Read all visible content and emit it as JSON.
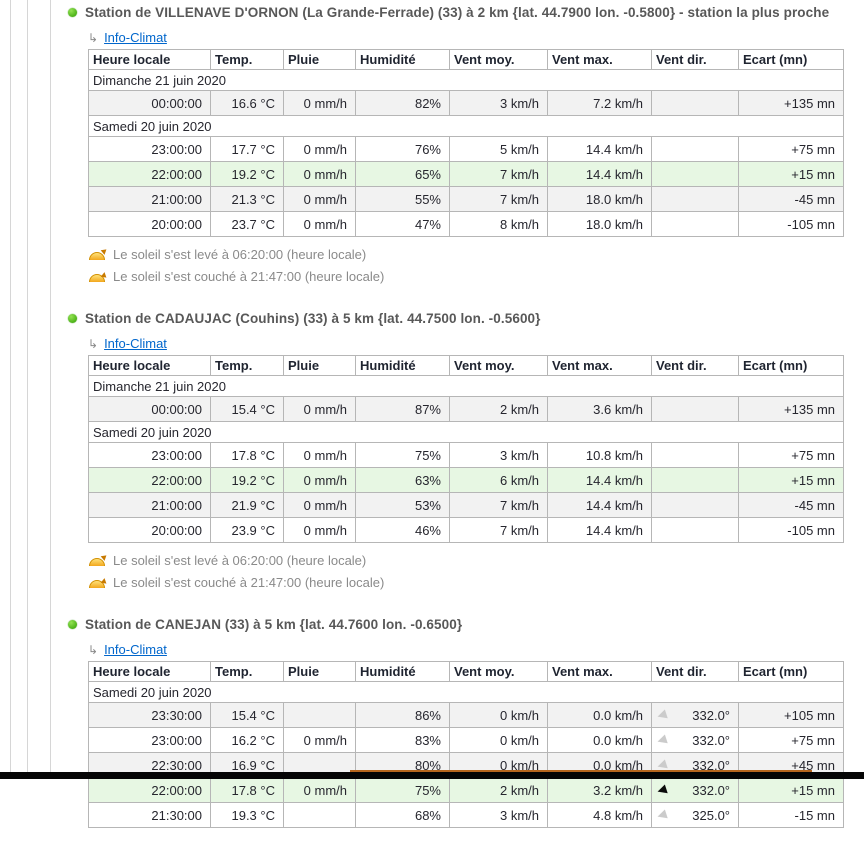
{
  "colors": {
    "station_dot": "#3fae00",
    "row_highlight_green": "#e7f7e3",
    "row_alt_gray": "#f2f2f2",
    "link_blue": "#0066cc",
    "bottom_bar_black": "#050505",
    "bottom_accent_orange": "#b5651d"
  },
  "icons": {
    "branch_arrow": "↳",
    "wind_arrow": "◀",
    "station_bullet": "green-dot",
    "sunrise": "sun-half-rise",
    "sunset": "sun-half-set"
  },
  "info_link_label": "Info-Climat",
  "columns": [
    "Heure locale",
    "Temp.",
    "Pluie",
    "Humidité",
    "Vent moy.",
    "Vent max.",
    "Vent dir.",
    "Ecart (mn)"
  ],
  "column_keys": [
    "heure-locale",
    "temp",
    "pluie",
    "humidite",
    "vent-moy",
    "vent-max",
    "vent-dir",
    "ecart"
  ],
  "stations": [
    {
      "title": "Station de VILLENAVE D'ORNON (La Grande-Ferrade) (33) à 2 km {lat. 44.7900 lon. -0.5800} - station la plus proche",
      "rows": [
        {
          "type": "date",
          "label": "Dimanche 21 juin 2020"
        },
        {
          "type": "data",
          "bg": "gray",
          "cells": [
            "00:00:00",
            "16.6 °C",
            "0 mm/h",
            "82%",
            "3 km/h",
            "7.2 km/h",
            "",
            "+135 mn"
          ]
        },
        {
          "type": "date",
          "label": "Samedi 20 juin 2020"
        },
        {
          "type": "data",
          "bg": "white",
          "cells": [
            "23:00:00",
            "17.7 °C",
            "0 mm/h",
            "76%",
            "5 km/h",
            "14.4 km/h",
            "",
            "+75 mn"
          ]
        },
        {
          "type": "data",
          "bg": "green",
          "cells": [
            "22:00:00",
            "19.2 °C",
            "0 mm/h",
            "65%",
            "7 km/h",
            "14.4 km/h",
            "",
            "+15 mn"
          ]
        },
        {
          "type": "data",
          "bg": "gray",
          "cells": [
            "21:00:00",
            "21.3 °C",
            "0 mm/h",
            "55%",
            "7 km/h",
            "18.0 km/h",
            "",
            "-45 mn"
          ]
        },
        {
          "type": "data",
          "bg": "white",
          "cells": [
            "20:00:00",
            "23.7 °C",
            "0 mm/h",
            "47%",
            "8 km/h",
            "18.0 km/h",
            "",
            "-105 mn"
          ]
        }
      ],
      "sunrise": "Le soleil s'est levé à 06:20:00 (heure locale)",
      "sunset": "Le soleil s'est couché à 21:47:00 (heure locale)"
    },
    {
      "title": "Station de CADAUJAC (Couhins) (33) à 5 km {lat. 44.7500 lon. -0.5600}",
      "rows": [
        {
          "type": "date",
          "label": "Dimanche 21 juin 2020"
        },
        {
          "type": "data",
          "bg": "gray",
          "cells": [
            "00:00:00",
            "15.4 °C",
            "0 mm/h",
            "87%",
            "2 km/h",
            "3.6 km/h",
            "",
            "+135 mn"
          ]
        },
        {
          "type": "date",
          "label": "Samedi 20 juin 2020"
        },
        {
          "type": "data",
          "bg": "white",
          "cells": [
            "23:00:00",
            "17.8 °C",
            "0 mm/h",
            "75%",
            "3 km/h",
            "10.8 km/h",
            "",
            "+75 mn"
          ]
        },
        {
          "type": "data",
          "bg": "green",
          "cells": [
            "22:00:00",
            "19.2 °C",
            "0 mm/h",
            "63%",
            "6 km/h",
            "14.4 km/h",
            "",
            "+15 mn"
          ]
        },
        {
          "type": "data",
          "bg": "gray",
          "cells": [
            "21:00:00",
            "21.9 °C",
            "0 mm/h",
            "53%",
            "7 km/h",
            "14.4 km/h",
            "",
            "-45 mn"
          ]
        },
        {
          "type": "data",
          "bg": "white",
          "cells": [
            "20:00:00",
            "23.9 °C",
            "0 mm/h",
            "46%",
            "7 km/h",
            "14.4 km/h",
            "",
            "-105 mn"
          ]
        }
      ],
      "sunrise": "Le soleil s'est levé à 06:20:00 (heure locale)",
      "sunset": "Le soleil s'est couché à 21:47:00 (heure locale)"
    },
    {
      "title": "Station de CANEJAN (33) à 5 km {lat. 44.7600 lon. -0.6500}",
      "rows": [
        {
          "type": "date",
          "label": "Samedi 20 juin 2020"
        },
        {
          "type": "data",
          "bg": "gray",
          "wind_arrow": "gray",
          "cells": [
            "23:30:00",
            "15.4 °C",
            "",
            "86%",
            "0 km/h",
            "0.0 km/h",
            "332.0°",
            "+105 mn"
          ]
        },
        {
          "type": "data",
          "bg": "white",
          "wind_arrow": "gray",
          "cells": [
            "23:00:00",
            "16.2 °C",
            "0 mm/h",
            "83%",
            "0 km/h",
            "0.0 km/h",
            "332.0°",
            "+75 mn"
          ]
        },
        {
          "type": "data",
          "bg": "gray",
          "wind_arrow": "gray",
          "cells": [
            "22:30:00",
            "16.9 °C",
            "",
            "80%",
            "0 km/h",
            "0.0 km/h",
            "332.0°",
            "+45 mn"
          ]
        },
        {
          "type": "data",
          "bg": "green",
          "wind_arrow": "black",
          "cells": [
            "22:00:00",
            "17.8 °C",
            "0 mm/h",
            "75%",
            "2 km/h",
            "3.2 km/h",
            "332.0°",
            "+15 mn"
          ]
        },
        {
          "type": "data",
          "bg": "white",
          "wind_arrow": "gray",
          "cells": [
            "21:30:00",
            "19.3 °C",
            "",
            "68%",
            "3 km/h",
            "4.8 km/h",
            "325.0°",
            "-15 mn"
          ]
        }
      ]
    }
  ]
}
